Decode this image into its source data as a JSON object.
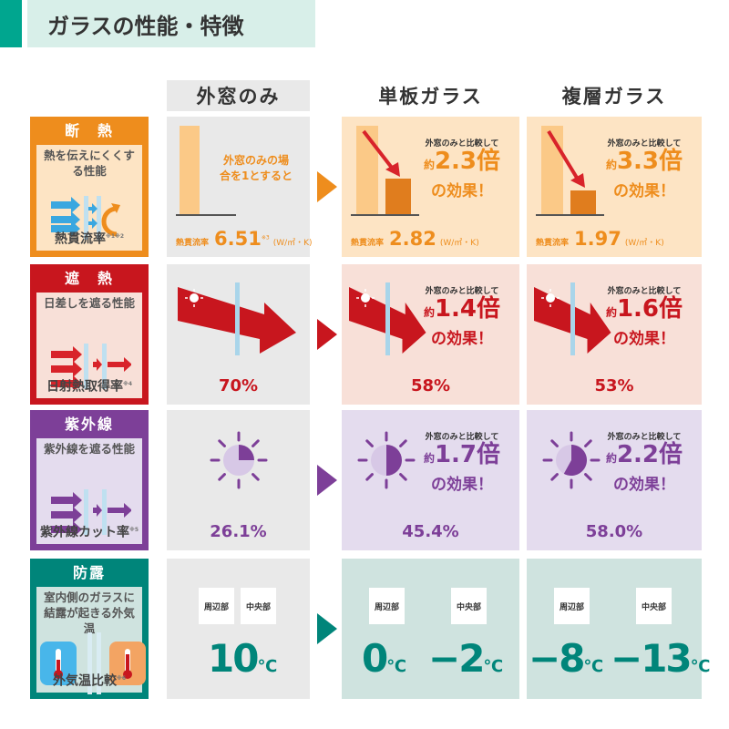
{
  "title": "ガラスの性能・特徴",
  "columns": [
    "外窓のみ",
    "単板ガラス",
    "複層ガラス"
  ],
  "colors": {
    "heat": "#ee8d1d",
    "shade": "#c8161e",
    "uv": "#7d3f98",
    "dew": "#00857a"
  },
  "rows": [
    {
      "key": "heat",
      "title": "断　熱",
      "desc": "熱を伝えにくくする性能",
      "foot": "熱貫流率",
      "note": "※1※2",
      "base_text": "外窓のみの場合を1とすると",
      "label": "熱貫流率",
      "unit": "(W/㎡・K)",
      "base_note": "※3",
      "values": [
        "6.51",
        "2.82",
        "1.97"
      ],
      "compare": "外窓のみと比較して",
      "approx": "約",
      "mult": [
        "2.3倍",
        "3.3倍"
      ],
      "effect": "の効果！"
    },
    {
      "key": "shade",
      "title": "遮　熱",
      "desc": "日差しを遮る性能",
      "foot": "日射熱取得率",
      "note": "※4",
      "values": [
        "70%",
        "58%",
        "53%"
      ],
      "compare": "外窓のみと比較して",
      "approx": "約",
      "mult": [
        "1.4倍",
        "1.6倍"
      ],
      "effect": "の効果！"
    },
    {
      "key": "uv",
      "title": "紫外線",
      "desc": "紫外線を遮る性能",
      "foot": "紫外線カット率",
      "note": "※5",
      "values": [
        "26.1%",
        "45.4%",
        "58.0%"
      ],
      "compare": "外窓のみと比較して",
      "approx": "約",
      "mult": [
        "1.7倍",
        "2.2倍"
      ],
      "effect": "の効果！"
    },
    {
      "key": "dew",
      "title": "防露",
      "desc": "室内側のガラスに結露が起きる外気温",
      "foot": "外気温比較",
      "note": "※6",
      "tags": [
        "周辺部",
        "中央部"
      ],
      "unit": "℃",
      "values": [
        "10",
        "0",
        "−2",
        "−8",
        "−13"
      ]
    }
  ]
}
